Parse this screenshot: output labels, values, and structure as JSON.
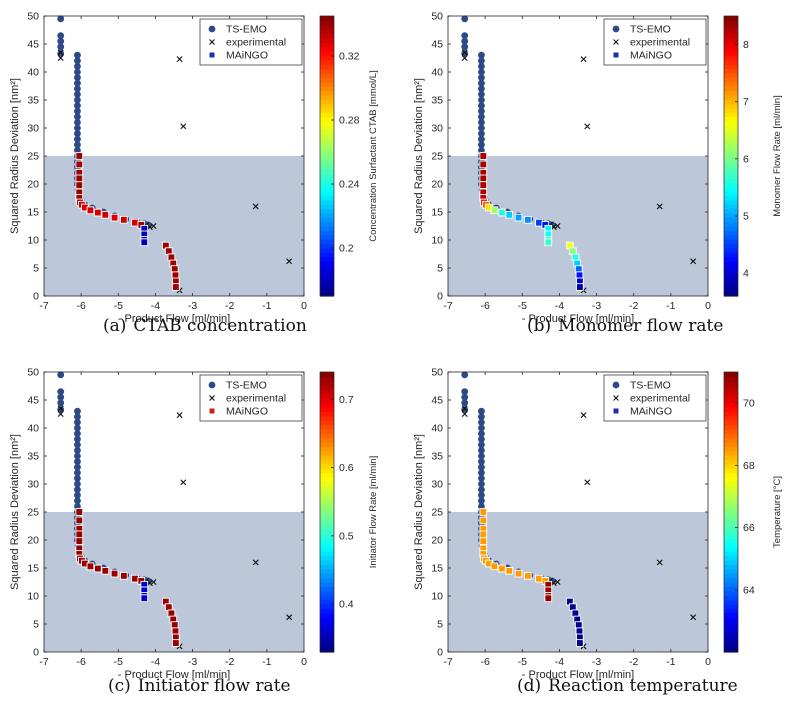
{
  "chart_data": [
    {
      "type": "scatter",
      "id": "a",
      "caption_tag": "(a)",
      "caption": "CTAB concentration",
      "xlabel": "- Product Flow [ml/min]",
      "ylabel": "Squared Radius Deviation [nm²]",
      "xlim": [
        -7,
        0
      ],
      "ylim": [
        0,
        50
      ],
      "xticks": [
        -7,
        -6,
        -5,
        -4,
        -3,
        -2,
        -1,
        0
      ],
      "yticks": [
        0,
        5,
        10,
        15,
        20,
        25,
        30,
        35,
        40,
        45,
        50
      ],
      "shaded_region": {
        "ymin": 0,
        "ymax": 25,
        "color": "#bcc7da"
      },
      "legend": {
        "position": "top-right",
        "entries": [
          "TS-EMO",
          "experimental",
          "MAiNGO"
        ],
        "maingo_swatch_color": "#1f2fa8"
      },
      "colorbar": {
        "label": "Concentration Surfactant CTAB [mmol/L]",
        "min": 0.17,
        "max": 0.345,
        "ticks": [
          0.2,
          0.24,
          0.28,
          0.32
        ]
      },
      "ts_emo": {
        "color": "#2b4a86",
        "x": [
          -6.55,
          -6.55,
          -6.55,
          -6.55,
          -6.55,
          -6.1,
          -6.1,
          -6.1,
          -6.1,
          -6.1,
          -6.1,
          -6.1,
          -6.1,
          -6.1,
          -6.1,
          -6.1,
          -6.1,
          -6.1,
          -6.1,
          -6.1,
          -6.1,
          -6.1,
          -6.1,
          -6.1,
          -6.1,
          -6.1,
          -6.1,
          -6.1,
          -6.1,
          -6.08,
          -6.06,
          -6.03,
          -6.0,
          -5.9,
          -5.7,
          -5.4,
          -5.1,
          -4.8,
          -4.5,
          -4.3,
          -4.2
        ],
        "y": [
          49.5,
          46.5,
          45.5,
          44.5,
          43.3,
          43,
          42,
          41,
          40,
          39,
          38,
          37,
          36,
          35,
          34,
          33,
          32,
          31,
          30,
          29,
          28,
          27,
          26,
          25,
          24,
          23,
          22,
          21,
          20,
          19,
          18,
          17.5,
          17,
          16.3,
          15.7,
          15,
          14.3,
          13.7,
          13.2,
          12.9,
          12.7
        ]
      },
      "experimental": {
        "x": [
          -6.55,
          -6.55,
          -4.25,
          -4.15,
          -4.05,
          -3.35,
          -3.25,
          -1.3,
          -0.4,
          -3.35
        ],
        "y": [
          42.5,
          43.5,
          12.7,
          12.3,
          12.5,
          42.3,
          30.3,
          16,
          6.2,
          1
        ]
      },
      "maingo": {
        "x": [
          -6.05,
          -6.05,
          -6.05,
          -6.05,
          -6.05,
          -6.05,
          -6.05,
          -6.03,
          -5.98,
          -5.9,
          -5.75,
          -5.55,
          -5.35,
          -5.1,
          -4.85,
          -4.55,
          -4.38,
          -4.3,
          -4.3,
          -4.3,
          -4.3,
          -3.72,
          -3.64,
          -3.57,
          -3.52,
          -3.48,
          -3.46,
          -3.45,
          -3.45
        ],
        "y": [
          25,
          23.5,
          22,
          21,
          19.8,
          18.5,
          17.5,
          16.7,
          16.3,
          15.8,
          15.3,
          14.9,
          14.5,
          14,
          13.6,
          13.1,
          12.7,
          12,
          11,
          10,
          9.6,
          9,
          8,
          6.9,
          5.8,
          4.8,
          3.7,
          2.6,
          1.6
        ],
        "values": [
          0.34,
          0.34,
          0.34,
          0.34,
          0.34,
          0.34,
          0.34,
          0.34,
          0.33,
          0.33,
          0.33,
          0.33,
          0.33,
          0.33,
          0.33,
          0.33,
          0.34,
          0.18,
          0.18,
          0.18,
          0.18,
          0.34,
          0.34,
          0.34,
          0.34,
          0.34,
          0.34,
          0.34,
          0.34
        ]
      }
    },
    {
      "type": "scatter",
      "id": "b",
      "caption_tag": "(b)",
      "caption": "Monomer flow rate",
      "xlabel": "- Product Flow [ml/min]",
      "ylabel": "Squared Radius Deviation [nm²]",
      "xlim": [
        -7,
        0
      ],
      "ylim": [
        0,
        50
      ],
      "xticks": [
        -7,
        -6,
        -5,
        -4,
        -3,
        -2,
        -1,
        0
      ],
      "yticks": [
        0,
        5,
        10,
        15,
        20,
        25,
        30,
        35,
        40,
        45,
        50
      ],
      "shaded_region": {
        "ymin": 0,
        "ymax": 25,
        "color": "#bcc7da"
      },
      "legend": {
        "position": "top-right",
        "entries": [
          "TS-EMO",
          "experimental",
          "MAiNGO"
        ],
        "maingo_swatch_color": "#1f2fa8"
      },
      "colorbar": {
        "label": "Monomer Flow Rate [ml/min]",
        "min": 3.6,
        "max": 8.5,
        "ticks": [
          4,
          5,
          6,
          7,
          8
        ]
      },
      "ts_emo": {
        "color": "#2b4a86",
        "x": [
          -6.55,
          -6.55,
          -6.55,
          -6.55,
          -6.55,
          -6.1,
          -6.1,
          -6.1,
          -6.1,
          -6.1,
          -6.1,
          -6.1,
          -6.1,
          -6.1,
          -6.1,
          -6.1,
          -6.1,
          -6.1,
          -6.1,
          -6.1,
          -6.1,
          -6.1,
          -6.1,
          -6.1,
          -6.1,
          -6.1,
          -6.1,
          -6.1,
          -6.1,
          -6.08,
          -6.06,
          -6.03,
          -6.0,
          -5.9,
          -5.7,
          -5.4,
          -5.1,
          -4.8,
          -4.5,
          -4.3,
          -4.2
        ],
        "y": [
          49.5,
          46.5,
          45.5,
          44.5,
          43.3,
          43,
          42,
          41,
          40,
          39,
          38,
          37,
          36,
          35,
          34,
          33,
          32,
          31,
          30,
          29,
          28,
          27,
          26,
          25,
          24,
          23,
          22,
          21,
          20,
          19,
          18,
          17.5,
          17,
          16.3,
          15.7,
          15,
          14.3,
          13.7,
          13.2,
          12.9,
          12.7
        ]
      },
      "experimental": {
        "x": [
          -6.55,
          -6.55,
          -4.25,
          -4.15,
          -4.05,
          -3.35,
          -3.25,
          -1.3,
          -0.4,
          -3.35
        ],
        "y": [
          42.5,
          43.5,
          12.7,
          12.3,
          12.5,
          42.3,
          30.3,
          16,
          6.2,
          1
        ]
      },
      "maingo": {
        "x": [
          -6.05,
          -6.05,
          -6.05,
          -6.05,
          -6.05,
          -6.05,
          -6.05,
          -6.03,
          -5.98,
          -5.9,
          -5.75,
          -5.55,
          -5.35,
          -5.1,
          -4.85,
          -4.55,
          -4.38,
          -4.3,
          -4.3,
          -4.3,
          -4.3,
          -3.72,
          -3.64,
          -3.57,
          -3.52,
          -3.48,
          -3.46,
          -3.45,
          -3.45
        ],
        "y": [
          25,
          23.5,
          22,
          21,
          19.8,
          18.5,
          17.5,
          16.7,
          16.3,
          15.8,
          15.3,
          14.9,
          14.5,
          14,
          13.6,
          13.1,
          12.7,
          12,
          11,
          10,
          9.6,
          9,
          8,
          6.9,
          5.8,
          4.8,
          3.7,
          2.6,
          1.6
        ],
        "values": [
          8.3,
          8.3,
          8.3,
          8.3,
          8.3,
          8.3,
          8.2,
          8.0,
          7.4,
          6.8,
          6.2,
          5.6,
          5.2,
          5.0,
          4.9,
          4.5,
          4.3,
          5.4,
          5.5,
          5.6,
          5.7,
          6.6,
          6.1,
          5.6,
          5.2,
          4.7,
          4.3,
          4.0,
          3.8
        ]
      }
    },
    {
      "type": "scatter",
      "id": "c",
      "caption_tag": "(c)",
      "caption": "Initiator flow rate",
      "xlabel": "- Product Flow [ml/min]",
      "ylabel": "Squared Radius Deviation [nm²]",
      "xlim": [
        -7,
        0
      ],
      "ylim": [
        0,
        50
      ],
      "xticks": [
        -7,
        -6,
        -5,
        -4,
        -3,
        -2,
        -1,
        0
      ],
      "yticks": [
        0,
        5,
        10,
        15,
        20,
        25,
        30,
        35,
        40,
        45,
        50
      ],
      "shaded_region": {
        "ymin": 0,
        "ymax": 25,
        "color": "#bcc7da"
      },
      "legend": {
        "position": "top-right",
        "entries": [
          "TS-EMO",
          "experimental",
          "MAiNGO"
        ],
        "maingo_swatch_color": "#c81e1e"
      },
      "colorbar": {
        "label": "Initiator Flow Rate [ml/min]",
        "min": 0.33,
        "max": 0.74,
        "ticks": [
          0.4,
          0.5,
          0.6,
          0.7
        ]
      },
      "ts_emo": {
        "color": "#2b4a86",
        "x": [
          -6.55,
          -6.55,
          -6.55,
          -6.55,
          -6.55,
          -6.1,
          -6.1,
          -6.1,
          -6.1,
          -6.1,
          -6.1,
          -6.1,
          -6.1,
          -6.1,
          -6.1,
          -6.1,
          -6.1,
          -6.1,
          -6.1,
          -6.1,
          -6.1,
          -6.1,
          -6.1,
          -6.1,
          -6.1,
          -6.1,
          -6.1,
          -6.1,
          -6.1,
          -6.08,
          -6.06,
          -6.03,
          -6.0,
          -5.9,
          -5.7,
          -5.4,
          -5.1,
          -4.8,
          -4.5,
          -4.3,
          -4.2
        ],
        "y": [
          49.5,
          46.5,
          45.5,
          44.5,
          43.3,
          43,
          42,
          41,
          40,
          39,
          38,
          37,
          36,
          35,
          34,
          33,
          32,
          31,
          30,
          29,
          28,
          27,
          26,
          25,
          24,
          23,
          22,
          21,
          20,
          19,
          18,
          17.5,
          17,
          16.3,
          15.7,
          15,
          14.3,
          13.7,
          13.2,
          12.9,
          12.7
        ]
      },
      "experimental": {
        "x": [
          -6.55,
          -6.55,
          -4.25,
          -4.15,
          -4.05,
          -3.35,
          -3.25,
          -1.3,
          -0.4,
          -3.35
        ],
        "y": [
          42.5,
          43.5,
          12.7,
          12.3,
          12.5,
          42.3,
          30.3,
          16,
          6.2,
          1
        ]
      },
      "maingo": {
        "x": [
          -6.05,
          -6.05,
          -6.05,
          -6.05,
          -6.05,
          -6.05,
          -6.05,
          -6.03,
          -5.98,
          -5.9,
          -5.75,
          -5.55,
          -5.35,
          -5.1,
          -4.85,
          -4.55,
          -4.38,
          -4.3,
          -4.3,
          -4.3,
          -4.3,
          -3.72,
          -3.64,
          -3.57,
          -3.52,
          -3.48,
          -3.46,
          -3.45,
          -3.45
        ],
        "y": [
          25,
          23.5,
          22,
          21,
          19.8,
          18.5,
          17.5,
          16.7,
          16.3,
          15.8,
          15.3,
          14.9,
          14.5,
          14,
          13.6,
          13.1,
          12.7,
          12,
          11,
          10,
          9.6,
          9,
          8,
          6.9,
          5.8,
          4.8,
          3.7,
          2.6,
          1.6
        ],
        "values": [
          0.73,
          0.73,
          0.73,
          0.73,
          0.73,
          0.73,
          0.73,
          0.73,
          0.73,
          0.73,
          0.73,
          0.73,
          0.73,
          0.73,
          0.73,
          0.73,
          0.73,
          0.36,
          0.36,
          0.36,
          0.36,
          0.73,
          0.73,
          0.73,
          0.73,
          0.73,
          0.73,
          0.73,
          0.73
        ]
      }
    },
    {
      "type": "scatter",
      "id": "d",
      "caption_tag": "(d)",
      "caption": "Reaction temperature",
      "xlabel": "- Product Flow [ml/min]",
      "ylabel": "Squared Radius Deviation [nm²]",
      "xlim": [
        -7,
        0
      ],
      "ylim": [
        0,
        50
      ],
      "xticks": [
        -7,
        -6,
        -5,
        -4,
        -3,
        -2,
        -1,
        0
      ],
      "yticks": [
        0,
        5,
        10,
        15,
        20,
        25,
        30,
        35,
        40,
        45,
        50
      ],
      "shaded_region": {
        "ymin": 0,
        "ymax": 25,
        "color": "#bcc7da"
      },
      "legend": {
        "position": "top-right",
        "entries": [
          "TS-EMO",
          "experimental",
          "MAiNGO"
        ],
        "maingo_swatch_color": "#1f2fa8"
      },
      "colorbar": {
        "label": "Temperature [°C]",
        "min": 62,
        "max": 71,
        "ticks": [
          64,
          66,
          68,
          70
        ]
      },
      "ts_emo": {
        "color": "#2b4a86",
        "x": [
          -6.55,
          -6.55,
          -6.55,
          -6.55,
          -6.55,
          -6.1,
          -6.1,
          -6.1,
          -6.1,
          -6.1,
          -6.1,
          -6.1,
          -6.1,
          -6.1,
          -6.1,
          -6.1,
          -6.1,
          -6.1,
          -6.1,
          -6.1,
          -6.1,
          -6.1,
          -6.1,
          -6.1,
          -6.1,
          -6.1,
          -6.1,
          -6.1,
          -6.1,
          -6.08,
          -6.06,
          -6.03,
          -6.0,
          -5.9,
          -5.7,
          -5.4,
          -5.1,
          -4.8,
          -4.5,
          -4.3,
          -4.2
        ],
        "y": [
          49.5,
          46.5,
          45.5,
          44.5,
          43.3,
          43,
          42,
          41,
          40,
          39,
          38,
          37,
          36,
          35,
          34,
          33,
          32,
          31,
          30,
          29,
          28,
          27,
          26,
          25,
          24,
          23,
          22,
          21,
          20,
          19,
          18,
          17.5,
          17,
          16.3,
          15.7,
          15,
          14.3,
          13.7,
          13.2,
          12.9,
          12.7
        ]
      },
      "experimental": {
        "x": [
          -6.55,
          -6.55,
          -4.25,
          -4.15,
          -4.05,
          -3.35,
          -3.25,
          -1.3,
          -0.4,
          -3.35
        ],
        "y": [
          42.5,
          43.5,
          12.7,
          12.3,
          12.5,
          42.3,
          30.3,
          16,
          6.2,
          1
        ]
      },
      "maingo": {
        "x": [
          -6.05,
          -6.05,
          -6.05,
          -6.05,
          -6.05,
          -6.05,
          -6.05,
          -6.03,
          -5.98,
          -5.9,
          -5.75,
          -5.55,
          -5.35,
          -5.1,
          -4.85,
          -4.55,
          -4.38,
          -4.3,
          -4.3,
          -4.3,
          -4.3,
          -3.72,
          -3.64,
          -3.57,
          -3.52,
          -3.48,
          -3.46,
          -3.45,
          -3.45
        ],
        "y": [
          25,
          23.5,
          22,
          21,
          19.8,
          18.5,
          17.5,
          16.7,
          16.3,
          15.8,
          15.3,
          14.9,
          14.5,
          14,
          13.6,
          13.1,
          12.7,
          12,
          11,
          10,
          9.6,
          9,
          8,
          6.9,
          5.8,
          4.8,
          3.7,
          2.6,
          1.6
        ],
        "values": [
          68.5,
          68.5,
          68.5,
          68.5,
          68.5,
          68.5,
          68.5,
          68.5,
          68.5,
          68.5,
          68.5,
          68.5,
          68.5,
          68.5,
          68.5,
          68.5,
          68.5,
          70.8,
          70.8,
          70.8,
          70.8,
          62.1,
          62.1,
          62.1,
          62.1,
          62.1,
          62.1,
          62.1,
          62.1
        ]
      }
    }
  ]
}
